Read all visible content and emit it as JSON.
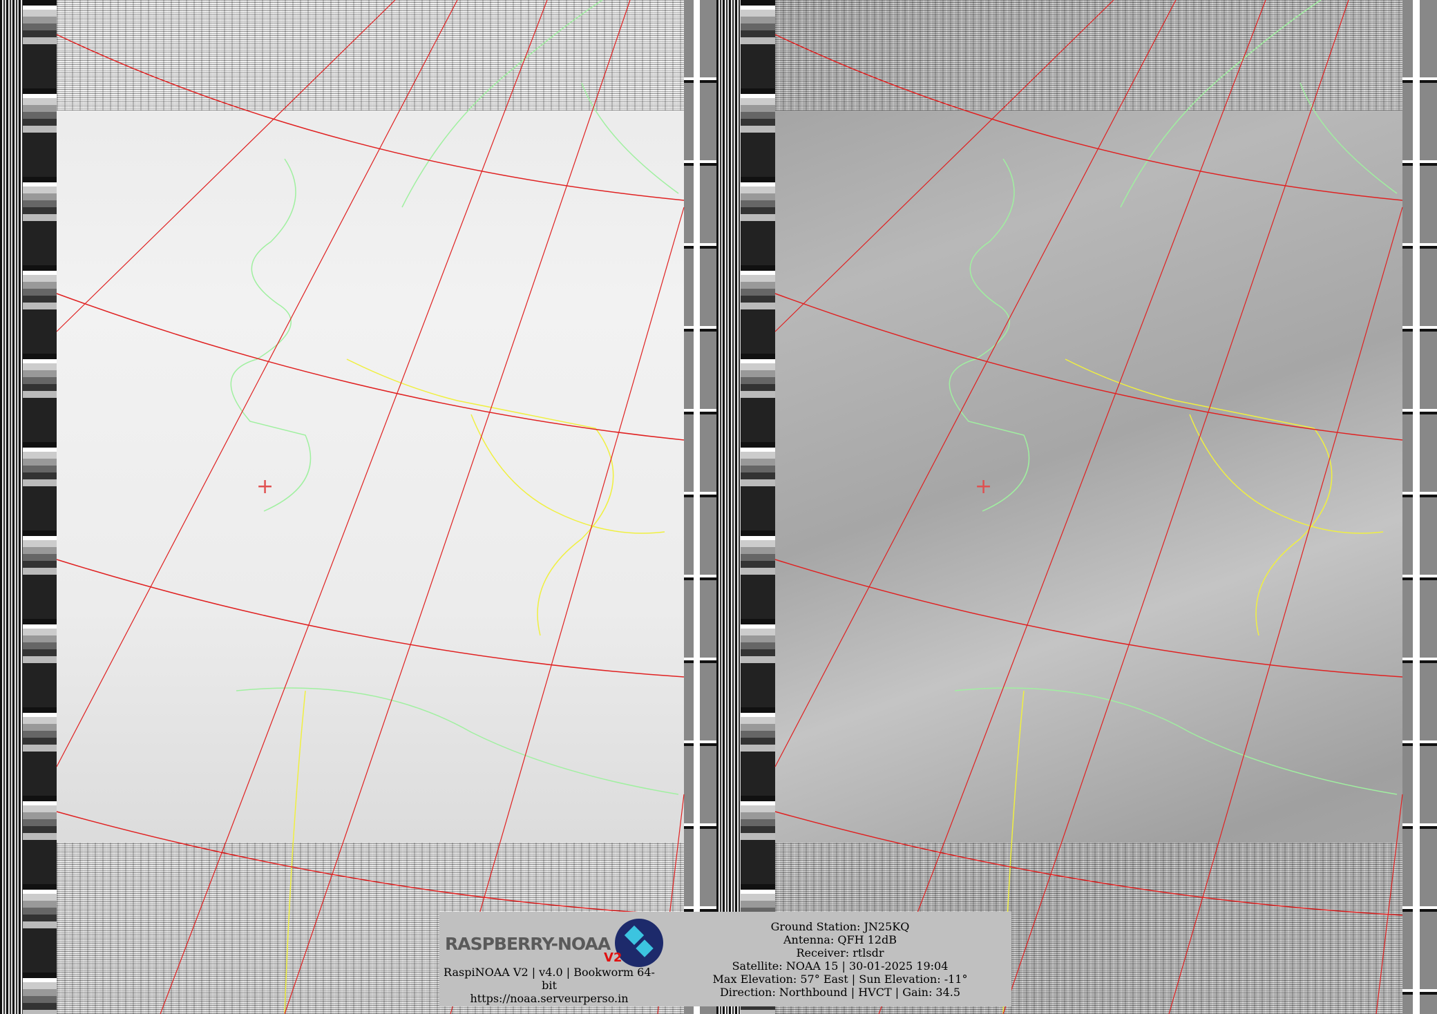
{
  "colors": {
    "grid_lines": "#e02020",
    "coastlines": "#a0f0a0",
    "borders": "#f0f040",
    "info_box": "#c0c0c0",
    "left_channel_bg": "#efefef",
    "right_channel_bg": "#a8a8a8"
  },
  "icons": {
    "crosshair": "ground-station-crosshair",
    "logo": "raspberry-noaa-v2-logo"
  },
  "logo": {
    "text": "RASPBERRY-NOAA",
    "version": "V2"
  },
  "info": {
    "software": "RaspiNOAA V2 | v4.0 | Bookworm 64-bit",
    "url": "https://noaa.serveurperso.in",
    "ground_station": "Ground Station: JN25KQ",
    "antenna": "Antenna: QFH 12dB",
    "receiver": "Receiver: rtlsdr",
    "satellite": "Satellite: NOAA 15 | 30-01-2025 19:04",
    "elevation": "Max Elevation: 57° East | Sun Elevation: -11°",
    "direction": "Direction: Northbound | HVCT | Gain: 34.5"
  }
}
